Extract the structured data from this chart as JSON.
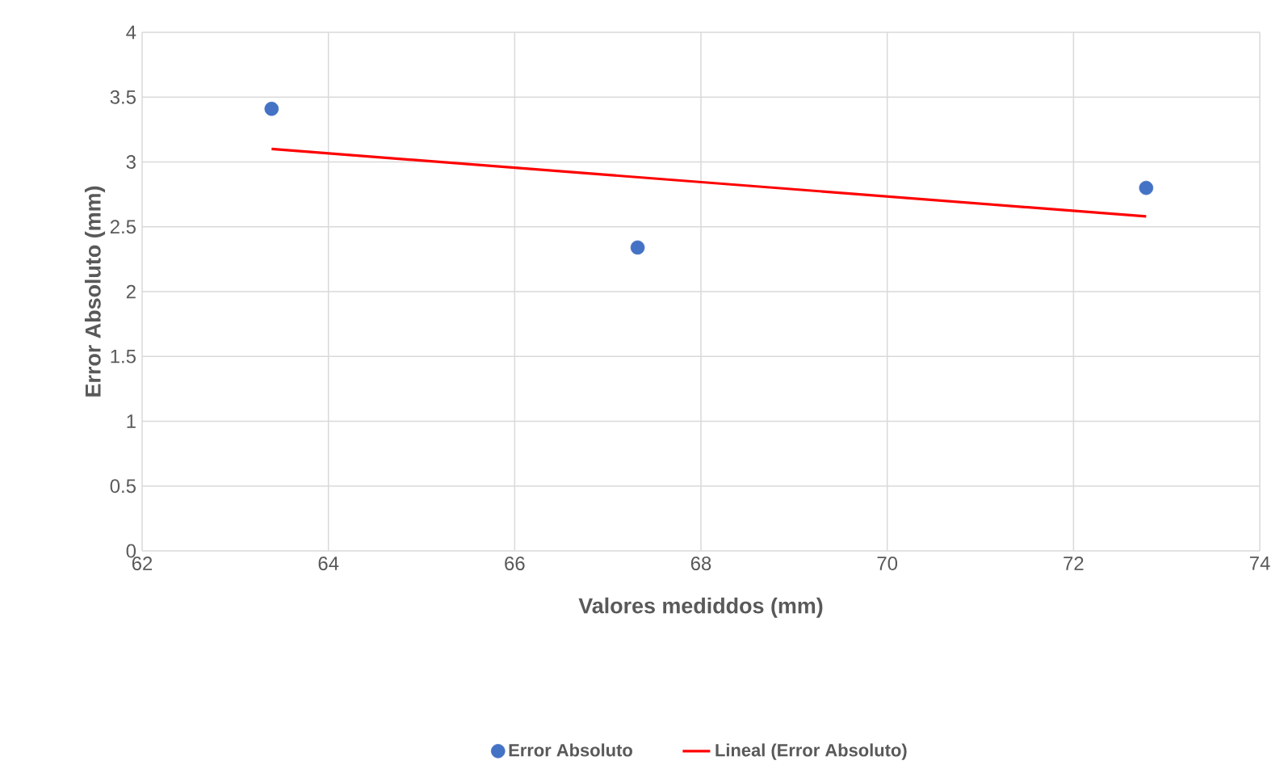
{
  "chart_data": {
    "type": "scatter",
    "xlabel": "Valores mediddos (mm)",
    "ylabel": "Error Absoluto (mm)",
    "xlim": [
      62,
      74
    ],
    "xticks": [
      62,
      64,
      66,
      68,
      70,
      72,
      74
    ],
    "ylim": [
      0,
      4
    ],
    "yticks": [
      0,
      0.5,
      1,
      1.5,
      2,
      2.5,
      3,
      3.5,
      4
    ],
    "grid": true,
    "legend": "bottom",
    "x": [
      63.39,
      67.32,
      72.78
    ],
    "series": [
      {
        "name": "Error Absoluto",
        "color": "#4472c4",
        "marker": "circle",
        "values": [
          3.41,
          2.34,
          2.8
        ]
      },
      {
        "name": "Lineal (Error Absoluto)",
        "type": "line",
        "color": "#ff0000",
        "line_style": "solid",
        "marker": "none",
        "x": [
          63.39,
          72.78
        ],
        "values": [
          3.1,
          2.58
        ]
      }
    ]
  }
}
